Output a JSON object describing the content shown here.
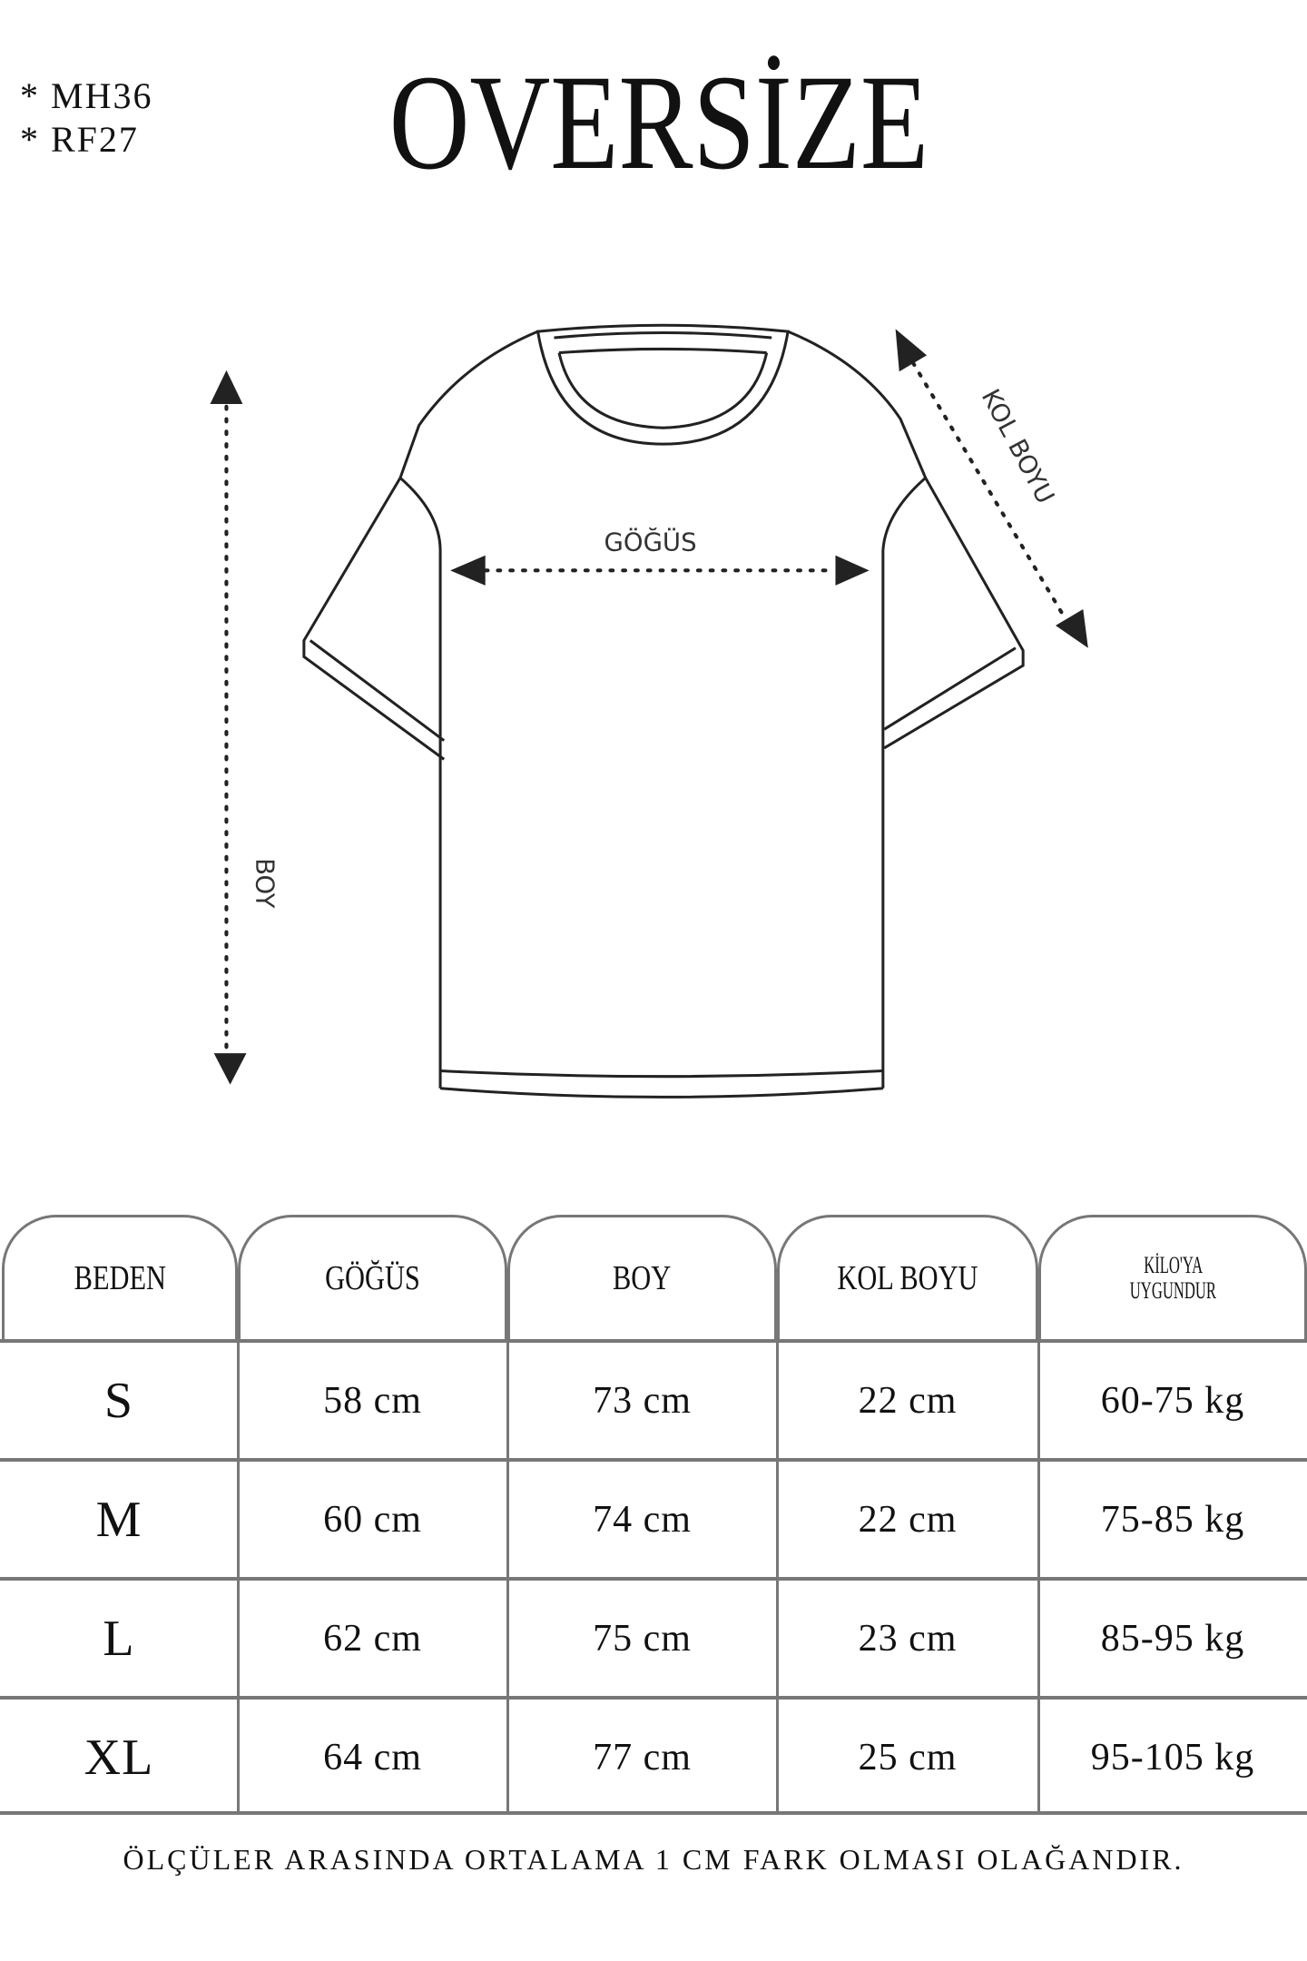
{
  "codes": [
    "* MH36",
    "* RF27"
  ],
  "title": "OVERSİZE",
  "diagram": {
    "labels": {
      "chest": "GÖĞÜS",
      "length": "BOY",
      "sleeve": "KOL BOYU"
    }
  },
  "table": {
    "headers": [
      "BEDEN",
      "GÖĞÜS",
      "BOY",
      "KOL BOYU",
      "KİLO'YA UYGUNDUR"
    ],
    "header_last_lines": [
      "KİLO'YA",
      "UYGUNDUR"
    ],
    "rows": [
      [
        "S",
        "58 cm",
        "73 cm",
        "22  cm",
        "60-75 kg"
      ],
      [
        "M",
        "60 cm",
        "74 cm",
        "22 cm",
        "75-85 kg"
      ],
      [
        "L",
        "62 cm",
        "75 cm",
        "23 cm",
        "85-95 kg"
      ],
      [
        "XL",
        "64 cm",
        "77 cm",
        "25 cm",
        "95-105 kg"
      ]
    ]
  },
  "footer": "ÖLÇÜLER ARASINDA ORTALAMA 1 CM FARK OLMASI OLAĞANDIR."
}
